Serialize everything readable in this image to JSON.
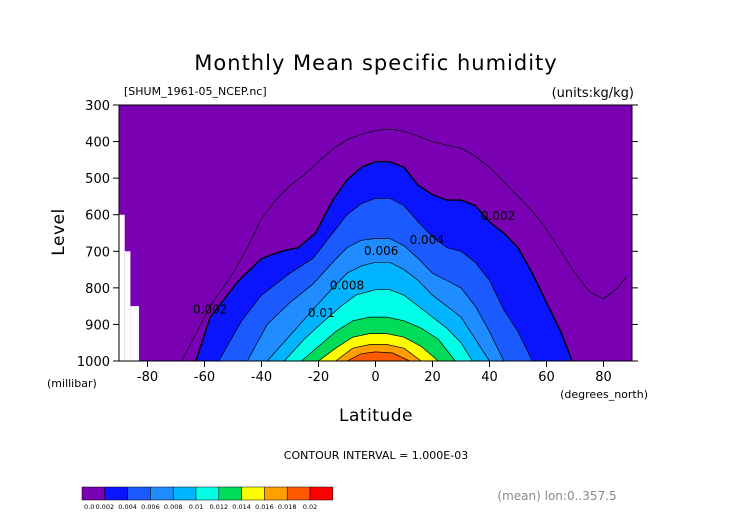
{
  "chart_data": {
    "type": "contour",
    "title": "Monthly Mean specific humidity",
    "file_label": "[SHUM_1961-05_NCEP.nc]",
    "units_label": "(units:kg/kg)",
    "xlabel": "Latitude",
    "x_units": "(degrees_north)",
    "ylabel": "Level",
    "y_units": "(millibar)",
    "xlim": [
      -90,
      90
    ],
    "ylim": [
      300,
      1000
    ],
    "x_ticks": [
      -80,
      -60,
      -40,
      -20,
      0,
      20,
      40,
      60,
      80
    ],
    "y_ticks": [
      300,
      400,
      500,
      600,
      700,
      800,
      900,
      1000
    ],
    "contour_interval_text": "CONTOUR INTERVAL = 1.000E-03",
    "mean_text": "(mean) lon:0..357.5",
    "contour_labels": [
      {
        "text": "0.002",
        "lat": 43,
        "lev": 615
      },
      {
        "text": "0.004",
        "lat": 18,
        "lev": 680
      },
      {
        "text": "0.006",
        "lat": 2,
        "lev": 710
      },
      {
        "text": "0.008",
        "lat": -10,
        "lev": 805
      },
      {
        "text": "0.01",
        "lat": -19,
        "lev": 880
      },
      {
        "text": "0.002",
        "lat": -58,
        "lev": 870
      }
    ],
    "levels": [
      {
        "min": 0.0,
        "color": "#7a00b4",
        "ridge": [
          [
            -90,
            300
          ],
          [
            90,
            300
          ]
        ]
      },
      {
        "min": 0.002,
        "color": "#0a14ff",
        "ridge": [
          [
            -63,
            1000
          ],
          [
            -58,
            880
          ],
          [
            -48,
            780
          ],
          [
            -40,
            720
          ],
          [
            -33,
            700
          ],
          [
            -27,
            690
          ],
          [
            -21,
            650
          ],
          [
            -15,
            560
          ],
          [
            -10,
            505
          ],
          [
            -5,
            470
          ],
          [
            0,
            455
          ],
          [
            5,
            455
          ],
          [
            10,
            470
          ],
          [
            15,
            520
          ],
          [
            20,
            545
          ],
          [
            25,
            560
          ],
          [
            30,
            560
          ],
          [
            35,
            575
          ],
          [
            40,
            620
          ],
          [
            45,
            650
          ],
          [
            50,
            690
          ],
          [
            55,
            760
          ],
          [
            60,
            840
          ],
          [
            65,
            920
          ],
          [
            69,
            1000
          ]
        ]
      },
      {
        "min": 0.004,
        "color": "#1a5aff",
        "ridge": [
          [
            -55,
            1000
          ],
          [
            -47,
            890
          ],
          [
            -40,
            820
          ],
          [
            -30,
            760
          ],
          [
            -22,
            720
          ],
          [
            -15,
            650
          ],
          [
            -10,
            600
          ],
          [
            -5,
            570
          ],
          [
            0,
            555
          ],
          [
            5,
            555
          ],
          [
            10,
            575
          ],
          [
            15,
            620
          ],
          [
            20,
            660
          ],
          [
            25,
            690
          ],
          [
            30,
            700
          ],
          [
            35,
            730
          ],
          [
            40,
            780
          ],
          [
            45,
            860
          ],
          [
            50,
            920
          ],
          [
            55,
            1000
          ]
        ]
      },
      {
        "min": 0.006,
        "color": "#1f8cff",
        "ridge": [
          [
            -45,
            1000
          ],
          [
            -38,
            900
          ],
          [
            -30,
            840
          ],
          [
            -22,
            790
          ],
          [
            -15,
            730
          ],
          [
            -10,
            690
          ],
          [
            -5,
            670
          ],
          [
            0,
            665
          ],
          [
            5,
            665
          ],
          [
            10,
            685
          ],
          [
            15,
            720
          ],
          [
            20,
            760
          ],
          [
            25,
            780
          ],
          [
            30,
            800
          ],
          [
            35,
            850
          ],
          [
            40,
            920
          ],
          [
            45,
            1000
          ]
        ]
      },
      {
        "min": 0.008,
        "color": "#00b4ff",
        "ridge": [
          [
            -38,
            1000
          ],
          [
            -30,
            930
          ],
          [
            -22,
            860
          ],
          [
            -15,
            800
          ],
          [
            -10,
            760
          ],
          [
            -5,
            740
          ],
          [
            0,
            730
          ],
          [
            5,
            730
          ],
          [
            10,
            750
          ],
          [
            15,
            780
          ],
          [
            20,
            820
          ],
          [
            25,
            850
          ],
          [
            30,
            880
          ],
          [
            35,
            940
          ],
          [
            40,
            1000
          ]
        ]
      },
      {
        "min": 0.01,
        "color": "#00ffe6",
        "ridge": [
          [
            -32,
            1000
          ],
          [
            -25,
            940
          ],
          [
            -18,
            890
          ],
          [
            -12,
            850
          ],
          [
            -7,
            820
          ],
          [
            0,
            805
          ],
          [
            5,
            805
          ],
          [
            10,
            820
          ],
          [
            15,
            850
          ],
          [
            20,
            880
          ],
          [
            25,
            910
          ],
          [
            30,
            950
          ],
          [
            34,
            1000
          ]
        ]
      },
      {
        "min": 0.012,
        "color": "#00dc5a",
        "ridge": [
          [
            -26,
            1000
          ],
          [
            -20,
            960
          ],
          [
            -14,
            920
          ],
          [
            -8,
            890
          ],
          [
            -2,
            880
          ],
          [
            4,
            880
          ],
          [
            10,
            890
          ],
          [
            16,
            910
          ],
          [
            22,
            940
          ],
          [
            28,
            1000
          ]
        ]
      },
      {
        "min": 0.014,
        "color": "#ffff00",
        "ridge": [
          [
            -20,
            1000
          ],
          [
            -14,
            965
          ],
          [
            -8,
            935
          ],
          [
            -2,
            925
          ],
          [
            4,
            925
          ],
          [
            10,
            935
          ],
          [
            16,
            960
          ],
          [
            22,
            1000
          ]
        ]
      },
      {
        "min": 0.016,
        "color": "#ffa000",
        "ridge": [
          [
            -14,
            1000
          ],
          [
            -8,
            965
          ],
          [
            -2,
            955
          ],
          [
            4,
            955
          ],
          [
            10,
            965
          ],
          [
            16,
            1000
          ]
        ]
      },
      {
        "min": 0.018,
        "color": "#ff5a00",
        "ridge": [
          [
            -10,
            1000
          ],
          [
            -5,
            980
          ],
          [
            0,
            975
          ],
          [
            6,
            978
          ],
          [
            12,
            1000
          ]
        ]
      }
    ],
    "outer_contour": [
      [
        -68,
        1000
      ],
      [
        -64,
        940
      ],
      [
        -58,
        850
      ],
      [
        -50,
        760
      ],
      [
        -45,
        690
      ],
      [
        -40,
        610
      ],
      [
        -35,
        560
      ],
      [
        -30,
        520
      ],
      [
        -25,
        490
      ],
      [
        -20,
        455
      ],
      [
        -15,
        420
      ],
      [
        -10,
        395
      ],
      [
        -5,
        380
      ],
      [
        0,
        370
      ],
      [
        5,
        366
      ],
      [
        10,
        372
      ],
      [
        15,
        385
      ],
      [
        20,
        400
      ],
      [
        25,
        410
      ],
      [
        30,
        418
      ],
      [
        35,
        440
      ],
      [
        40,
        470
      ],
      [
        45,
        510
      ],
      [
        50,
        550
      ],
      [
        55,
        590
      ],
      [
        60,
        640
      ],
      [
        65,
        700
      ],
      [
        70,
        760
      ],
      [
        75,
        810
      ],
      [
        80,
        830
      ],
      [
        85,
        800
      ],
      [
        88,
        770
      ]
    ],
    "missing_blocks": [
      {
        "lat": [
          -90,
          -88
        ],
        "lev": [
          600,
          1000
        ]
      },
      {
        "lat": [
          -88,
          -86
        ],
        "lev": [
          700,
          1000
        ]
      },
      {
        "lat": [
          -86,
          -83
        ],
        "lev": [
          850,
          1000
        ]
      }
    ],
    "colorbar": {
      "labels": [
        "0.0",
        "0.002",
        "0.004",
        "0.006",
        "0.008",
        "0.01",
        "0.012",
        "0.014",
        "0.016",
        "0.018",
        "0.02"
      ],
      "colors": [
        "#7a00b4",
        "#0a14ff",
        "#1a5aff",
        "#1f8cff",
        "#00b4ff",
        "#00ffe6",
        "#00dc5a",
        "#ffff00",
        "#ffa000",
        "#ff5a00",
        "#ff0000"
      ]
    }
  }
}
